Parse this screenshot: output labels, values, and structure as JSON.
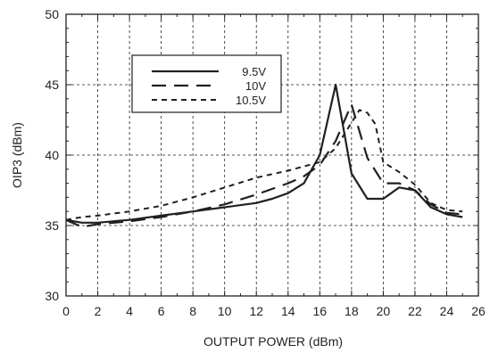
{
  "chart_data": {
    "type": "line",
    "xlabel": "OUTPUT POWER  (dBm)",
    "ylabel": "OIP3 (dBm)",
    "xlim": [
      0,
      26
    ],
    "ylim": [
      30,
      50
    ],
    "x_ticks": [
      0,
      2,
      4,
      6,
      8,
      10,
      12,
      14,
      16,
      18,
      20,
      22,
      24,
      26
    ],
    "y_ticks": [
      30,
      35,
      40,
      45,
      50
    ],
    "grid": true,
    "legend_position": "top-left inside plot",
    "series": [
      {
        "name": "9.5V",
        "style": "solid",
        "x": [
          0,
          1,
          2,
          4,
          6,
          8,
          10,
          12,
          13,
          14,
          15,
          16,
          17,
          18,
          19,
          20,
          21,
          22,
          23,
          24,
          25
        ],
        "y": [
          35.4,
          35.2,
          35.2,
          35.4,
          35.7,
          36.0,
          36.3,
          36.6,
          36.9,
          37.3,
          38.0,
          40.0,
          45.0,
          38.7,
          36.9,
          36.9,
          37.7,
          37.5,
          36.3,
          35.8,
          35.6
        ]
      },
      {
        "name": "10V",
        "style": "long-dash",
        "x": [
          0,
          1,
          2,
          4,
          6,
          8,
          10,
          12,
          14,
          15,
          16,
          17,
          18,
          19,
          20,
          21,
          22,
          23,
          24,
          25
        ],
        "y": [
          35.4,
          34.9,
          35.1,
          35.3,
          35.6,
          36.0,
          36.5,
          37.2,
          38.0,
          38.5,
          39.3,
          41.0,
          43.6,
          39.8,
          38.0,
          38.0,
          37.5,
          36.5,
          35.9,
          35.8
        ]
      },
      {
        "name": "10.5V",
        "style": "short-dash",
        "x": [
          0,
          1,
          2,
          4,
          6,
          8,
          10,
          12,
          14,
          16,
          17,
          18,
          18.5,
          19,
          19.5,
          20,
          21,
          22,
          23,
          24,
          25
        ],
        "y": [
          35.4,
          35.6,
          35.7,
          36.0,
          36.4,
          37.0,
          37.7,
          38.4,
          38.9,
          39.5,
          40.5,
          42.3,
          43.2,
          43.0,
          42.2,
          39.5,
          38.8,
          37.9,
          36.6,
          36.1,
          36.0
        ]
      }
    ]
  }
}
